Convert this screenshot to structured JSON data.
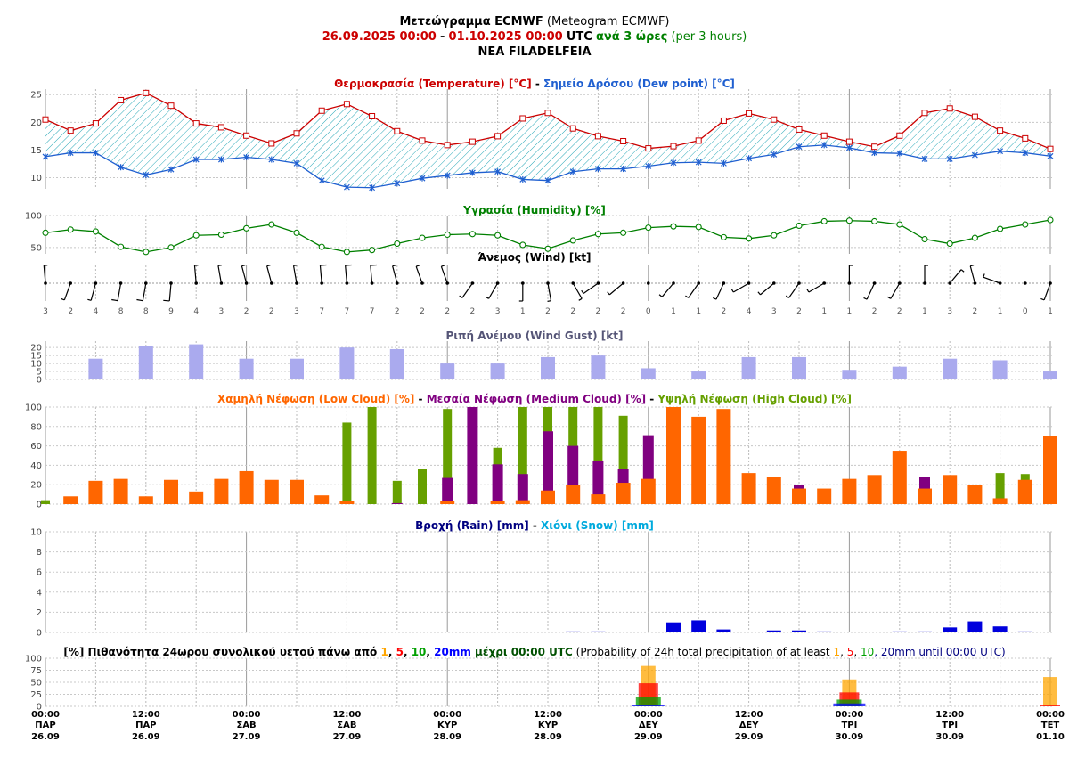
{
  "header": {
    "title_main": "Μετεώγραμμα ECMWF",
    "title_sub": "(Meteogram ECMWF)",
    "start": "26.09.2025 00:00",
    "sep": "-",
    "end": "01.10.2025 00:00",
    "utc": "UTC",
    "interval": "ανά 3 ώρες",
    "interval_en": "(per 3 hours)",
    "location": "NEA FILADELFEIA"
  },
  "colors": {
    "temp": "#cc0000",
    "dew": "#1f5fd0",
    "hum": "#008000",
    "gust": "#aaaaee",
    "low": "#ff6600",
    "mid": "#800080",
    "high": "#66a000",
    "rain": "#0000dd",
    "snow": "#00aadd",
    "p1": "#ffa500",
    "p5": "#ff0000",
    "p10": "#00a000",
    "p20": "#0000ff",
    "grid": "#aaaaaa"
  },
  "panels": {
    "temp_title": [
      {
        "t": "Θερμοκρασία (Temperature) [°C]",
        "c": "#cc0000"
      },
      {
        "t": " - ",
        "c": "#000000"
      },
      {
        "t": "Σημείο Δρόσου (Dew point) [°C]",
        "c": "#1f5fd0"
      }
    ],
    "hum_title": [
      {
        "t": "Υγρασία (Humidity) [%]",
        "c": "#008000"
      }
    ],
    "wind_title": [
      {
        "t": "Άνεμος (Wind) [kt]",
        "c": "#000000"
      }
    ],
    "gust_title": [
      {
        "t": "Ριπή Ανέμου (Wind Gust) [kt]",
        "c": "#555577"
      }
    ],
    "cloud_title": [
      {
        "t": "Χαμηλή Νέφωση (Low Cloud) [%]",
        "c": "#ff6600"
      },
      {
        "t": " - ",
        "c": "#000000"
      },
      {
        "t": "Μεσαία Νέφωση (Medium Cloud) [%]",
        "c": "#800080"
      },
      {
        "t": " - ",
        "c": "#000000"
      },
      {
        "t": "Υψηλή Νέφωση (High Cloud) [%]",
        "c": "#66a000"
      }
    ],
    "rain_title": [
      {
        "t": "Βροχή (Rain) [mm]",
        "c": "#000080"
      },
      {
        "t": " - ",
        "c": "#000000"
      },
      {
        "t": "Χιόνι (Snow) [mm]",
        "c": "#00aadd"
      }
    ],
    "prob_title": [
      {
        "t": "[%] Πιθανότητα 24ωρου συνολικού υετού πάνω από ",
        "c": "#000000",
        "b": true
      },
      {
        "t": "1",
        "c": "#ffa500",
        "b": true
      },
      {
        "t": ", ",
        "c": "#000000",
        "b": true
      },
      {
        "t": "5",
        "c": "#ff0000",
        "b": true
      },
      {
        "t": ", ",
        "c": "#000000",
        "b": true
      },
      {
        "t": "10",
        "c": "#00a000",
        "b": true
      },
      {
        "t": ", ",
        "c": "#000000",
        "b": true
      },
      {
        "t": "20mm",
        "c": "#0000ff",
        "b": true
      },
      {
        "t": " μέχρι 00:00 UTC",
        "c": "#005000",
        "b": true
      },
      {
        "t": " (Probability of 24h total precipitation of at least ",
        "c": "#000000",
        "b": false
      },
      {
        "t": "1",
        "c": "#ffa500",
        "b": false
      },
      {
        "t": ", ",
        "c": "#000000",
        "b": false
      },
      {
        "t": "5",
        "c": "#ff0000",
        "b": false
      },
      {
        "t": ", ",
        "c": "#000000",
        "b": false
      },
      {
        "t": "10",
        "c": "#00a000",
        "b": false
      },
      {
        "t": ", 20mm",
        "c": "#000080",
        "b": false
      },
      {
        "t": " until 00:00 UTC)",
        "c": "#000080",
        "b": false
      }
    ]
  },
  "chart_data": {
    "type": "meteogram",
    "steps": 41,
    "step_hours": 3,
    "axes": {
      "temp": {
        "ylim": [
          8,
          26
        ],
        "ticks": [
          10,
          15,
          20,
          25
        ]
      },
      "humidity": {
        "ylim": [
          40,
          100
        ],
        "ticks": [
          50,
          100
        ]
      },
      "gust": {
        "ylim": [
          0,
          24
        ],
        "ticks": [
          0,
          5,
          10,
          15,
          20
        ]
      },
      "cloud": {
        "ylim": [
          0,
          100
        ],
        "ticks": [
          0,
          20,
          40,
          60,
          80,
          100
        ]
      },
      "rain": {
        "ylim": [
          0,
          10
        ],
        "ticks": [
          0,
          2,
          4,
          6,
          8,
          10
        ]
      },
      "prob": {
        "ylim": [
          0,
          100
        ],
        "ticks": [
          0,
          25,
          50,
          75,
          100
        ]
      }
    },
    "temperature": [
      20.5,
      18.5,
      19.8,
      24,
      25.3,
      23,
      19.8,
      19.1,
      17.6,
      16.2,
      18,
      22.1,
      23.3,
      21.1,
      18.4,
      16.7,
      15.9,
      16.5,
      17.5,
      20.7,
      21.7,
      18.9,
      17.5,
      16.6,
      15.3,
      15.7,
      16.7,
      20.3,
      21.6,
      20.5,
      18.7,
      17.6,
      16.5,
      15.6,
      17.6,
      21.7,
      22.5,
      21,
      18.5,
      17.1,
      15.2
    ],
    "dew_point": [
      13.8,
      14.5,
      14.5,
      11.9,
      10.5,
      11.5,
      13.3,
      13.3,
      13.7,
      13.3,
      12.6,
      9.5,
      8.3,
      8.2,
      9,
      9.9,
      10.4,
      10.9,
      11.1,
      9.7,
      9.5,
      11.1,
      11.6,
      11.6,
      12.1,
      12.7,
      12.8,
      12.6,
      13.5,
      14.2,
      15.6,
      15.9,
      15.4,
      14.5,
      14.4,
      13.4,
      13.4,
      14.1,
      14.8,
      14.5,
      13.9
    ],
    "humidity": [
      73,
      78,
      75,
      51,
      43,
      50,
      69,
      70,
      80,
      86,
      73,
      51,
      43,
      46,
      56,
      65,
      70,
      71,
      69,
      54,
      48,
      61,
      71,
      73,
      81,
      83,
      82,
      66,
      64,
      69,
      84,
      91,
      92,
      91,
      86,
      63,
      56,
      65,
      79,
      86,
      93
    ],
    "wind_speed": [
      3,
      2,
      4,
      8,
      8,
      9,
      4,
      3,
      2,
      2,
      3,
      7,
      7,
      7,
      2,
      2,
      2,
      2,
      3,
      1,
      2,
      2,
      2,
      2,
      0,
      1,
      1,
      2,
      4,
      3,
      2,
      1,
      1,
      2,
      2,
      1,
      3,
      2,
      1,
      0,
      1
    ],
    "wind_dir_deg": [
      355,
      200,
      195,
      190,
      190,
      185,
      355,
      350,
      345,
      345,
      350,
      355,
      355,
      355,
      345,
      340,
      340,
      215,
      210,
      180,
      170,
      150,
      235,
      230,
      0,
      220,
      215,
      205,
      240,
      230,
      215,
      240,
      0,
      205,
      210,
      0,
      40,
      345,
      290,
      0,
      200
    ],
    "wind_gust": [
      null,
      null,
      13,
      null,
      21,
      null,
      22,
      null,
      13,
      null,
      13,
      null,
      20,
      null,
      19,
      null,
      10,
      null,
      10,
      null,
      14,
      null,
      15,
      null,
      7,
      null,
      5,
      null,
      14,
      null,
      14,
      null,
      6,
      null,
      8,
      null,
      13,
      null,
      12,
      null,
      5
    ],
    "low_cloud": [
      0,
      8,
      24,
      26,
      8,
      25,
      13,
      26,
      34,
      25,
      25,
      9,
      3,
      0,
      0,
      0,
      3,
      0,
      3,
      4,
      14,
      20,
      10,
      22,
      26,
      100,
      90,
      98,
      32,
      28,
      16,
      16,
      26,
      30,
      55,
      16,
      30,
      20,
      6,
      25,
      70
    ],
    "medium_cloud": [
      0,
      0,
      0,
      0,
      0,
      0,
      0,
      0,
      0,
      0,
      0,
      0,
      0,
      0,
      1,
      0,
      27,
      100,
      41,
      31,
      75,
      60,
      45,
      36,
      71,
      0,
      0,
      0,
      0,
      0,
      20,
      0,
      0,
      0,
      0,
      28,
      0,
      0,
      0,
      0,
      0
    ],
    "high_cloud": [
      4,
      0,
      0,
      0,
      0,
      0,
      0,
      0,
      0,
      0,
      0,
      0,
      84,
      100,
      24,
      36,
      98,
      0,
      58,
      100,
      100,
      100,
      100,
      91,
      0,
      0,
      0,
      0,
      0,
      0,
      0,
      0,
      0,
      0,
      0,
      0,
      0,
      0,
      32,
      31,
      0
    ],
    "rain": [
      0,
      0,
      0,
      0,
      0,
      0,
      0,
      0,
      0,
      0,
      0,
      0,
      0,
      0,
      0,
      0,
      0,
      0,
      0,
      0,
      0,
      0.1,
      0.1,
      0,
      0,
      1.0,
      1.2,
      0.3,
      0,
      0.2,
      0.2,
      0.1,
      0,
      0,
      0.1,
      0.1,
      0.5,
      1.1,
      0.6,
      0.1,
      0
    ],
    "snow": [],
    "prob_24h": [
      {
        "step": 24,
        "p1": 84,
        "p5": 48,
        "p10": 20,
        "p20": 2
      },
      {
        "step": 32,
        "p1": 56,
        "p5": 29,
        "p10": 14,
        "p20": 6
      },
      {
        "step": 40,
        "p1": 61,
        "p5": 2,
        "p10": 0,
        "p20": 0
      }
    ],
    "day_labels": [
      {
        "step": 0,
        "time": "00:00",
        "day": "ΠΑΡ",
        "date": "26.09"
      },
      {
        "step": 4,
        "time": "12:00",
        "day": "ΠΑΡ",
        "date": "26.09"
      },
      {
        "step": 8,
        "time": "00:00",
        "day": "ΣΑΒ",
        "date": "27.09"
      },
      {
        "step": 12,
        "time": "12:00",
        "day": "ΣΑΒ",
        "date": "27.09"
      },
      {
        "step": 16,
        "time": "00:00",
        "day": "ΚΥΡ",
        "date": "28.09"
      },
      {
        "step": 20,
        "time": "12:00",
        "day": "ΚΥΡ",
        "date": "28.09"
      },
      {
        "step": 24,
        "time": "00:00",
        "day": "ΔΕΥ",
        "date": "29.09"
      },
      {
        "step": 28,
        "time": "12:00",
        "day": "ΔΕΥ",
        "date": "29.09"
      },
      {
        "step": 32,
        "time": "00:00",
        "day": "ΤΡΙ",
        "date": "30.09"
      },
      {
        "step": 36,
        "time": "12:00",
        "day": "ΤΡΙ",
        "date": "30.09"
      },
      {
        "step": 40,
        "time": "00:00",
        "day": "ΤΕΤ",
        "date": "01.10"
      }
    ]
  }
}
